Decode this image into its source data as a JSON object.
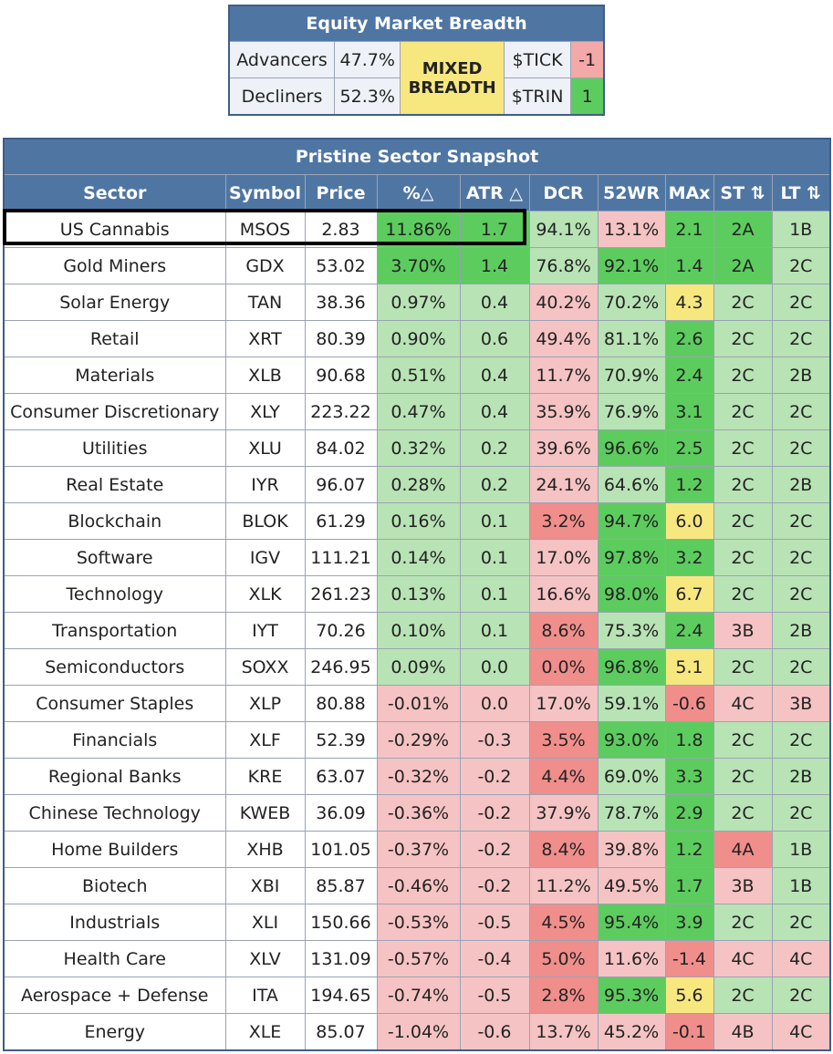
{
  "breadth": {
    "title": "Equity Market Breadth",
    "advancers_label": "Advancers",
    "advancers_value": "47.7%",
    "decliners_label": "Decliners",
    "decliners_value": "52.3%",
    "status_line1": "MIXED",
    "status_line2": "BREADTH",
    "tick_label": "$TICK",
    "tick_value": "-1",
    "trin_label": "$TRIN",
    "trin_value": "1"
  },
  "snapshot": {
    "title": "Pristine Sector Snapshot",
    "headers": [
      "Sector",
      "Symbol",
      "Price",
      "%△",
      "ATR △",
      "DCR",
      "52WR",
      "MAx",
      "ST ⇅",
      "LT ⇅"
    ],
    "rows": [
      [
        "US Cannabis",
        "MSOS",
        "2.83",
        "11.86%",
        "1.7",
        "94.1%",
        "13.1%",
        "2.1",
        "2A",
        "1B"
      ],
      [
        "Gold Miners",
        "GDX",
        "53.02",
        "3.70%",
        "1.4",
        "76.8%",
        "92.1%",
        "1.4",
        "2A",
        "2C"
      ],
      [
        "Solar Energy",
        "TAN",
        "38.36",
        "0.97%",
        "0.4",
        "40.2%",
        "70.2%",
        "4.3",
        "2C",
        "2C"
      ],
      [
        "Retail",
        "XRT",
        "80.39",
        "0.90%",
        "0.6",
        "49.4%",
        "81.1%",
        "2.6",
        "2C",
        "2C"
      ],
      [
        "Materials",
        "XLB",
        "90.68",
        "0.51%",
        "0.4",
        "11.7%",
        "70.9%",
        "2.4",
        "2C",
        "2B"
      ],
      [
        "Consumer Discretionary",
        "XLY",
        "223.22",
        "0.47%",
        "0.4",
        "35.9%",
        "76.9%",
        "3.1",
        "2C",
        "2C"
      ],
      [
        "Utilities",
        "XLU",
        "84.02",
        "0.32%",
        "0.2",
        "39.6%",
        "96.6%",
        "2.5",
        "2C",
        "2C"
      ],
      [
        "Real Estate",
        "IYR",
        "96.07",
        "0.28%",
        "0.2",
        "24.1%",
        "64.6%",
        "1.2",
        "2C",
        "2B"
      ],
      [
        "Blockchain",
        "BLOK",
        "61.29",
        "0.16%",
        "0.1",
        "3.2%",
        "94.7%",
        "6.0",
        "2C",
        "2C"
      ],
      [
        "Software",
        "IGV",
        "111.21",
        "0.14%",
        "0.1",
        "17.0%",
        "97.8%",
        "3.2",
        "2C",
        "2C"
      ],
      [
        "Technology",
        "XLK",
        "261.23",
        "0.13%",
        "0.1",
        "16.6%",
        "98.0%",
        "6.7",
        "2C",
        "2C"
      ],
      [
        "Transportation",
        "IYT",
        "70.26",
        "0.10%",
        "0.1",
        "8.6%",
        "75.3%",
        "2.4",
        "3B",
        "2B"
      ],
      [
        "Semiconductors",
        "SOXX",
        "246.95",
        "0.09%",
        "0.0",
        "0.0%",
        "96.8%",
        "5.1",
        "2C",
        "2C"
      ],
      [
        "Consumer Staples",
        "XLP",
        "80.88",
        "-0.01%",
        "0.0",
        "17.0%",
        "59.1%",
        "-0.6",
        "4C",
        "3B"
      ],
      [
        "Financials",
        "XLF",
        "52.39",
        "-0.29%",
        "-0.3",
        "3.5%",
        "93.0%",
        "1.8",
        "2C",
        "2C"
      ],
      [
        "Regional Banks",
        "KRE",
        "63.07",
        "-0.32%",
        "-0.2",
        "4.4%",
        "69.0%",
        "3.3",
        "2C",
        "2B"
      ],
      [
        "Chinese Technology",
        "KWEB",
        "36.09",
        "-0.36%",
        "-0.2",
        "37.9%",
        "78.7%",
        "2.9",
        "2C",
        "2C"
      ],
      [
        "Home Builders",
        "XHB",
        "101.05",
        "-0.37%",
        "-0.2",
        "8.4%",
        "39.8%",
        "1.2",
        "4A",
        "1B"
      ],
      [
        "Biotech",
        "XBI",
        "85.87",
        "-0.46%",
        "-0.2",
        "11.2%",
        "49.5%",
        "1.7",
        "3B",
        "1B"
      ],
      [
        "Industrials",
        "XLI",
        "150.66",
        "-0.53%",
        "-0.5",
        "4.5%",
        "95.4%",
        "3.9",
        "2C",
        "2C"
      ],
      [
        "Health Care",
        "XLV",
        "131.09",
        "-0.57%",
        "-0.4",
        "5.0%",
        "11.6%",
        "-1.4",
        "4C",
        "4C"
      ],
      [
        "Aerospace + Defense",
        "ITA",
        "194.65",
        "-0.74%",
        "-0.5",
        "2.8%",
        "95.3%",
        "5.6",
        "2C",
        "2C"
      ],
      [
        "Energy",
        "XLE",
        "85.07",
        "-1.04%",
        "-0.6",
        "13.7%",
        "45.2%",
        "-0.1",
        "4B",
        "4C"
      ]
    ],
    "colors": [
      [
        "w",
        "w",
        "w",
        "dg",
        "dg",
        "lg",
        "lr",
        "dg",
        "dg",
        "lg"
      ],
      [
        "w",
        "w",
        "w",
        "dg",
        "dg",
        "lg",
        "dg",
        "dg",
        "dg",
        "lg"
      ],
      [
        "w",
        "w",
        "w",
        "lg",
        "lg",
        "lr",
        "lg",
        "y",
        "lg",
        "lg"
      ],
      [
        "w",
        "w",
        "w",
        "lg",
        "lg",
        "lr",
        "lg",
        "dg",
        "lg",
        "lg"
      ],
      [
        "w",
        "w",
        "w",
        "lg",
        "lg",
        "lr",
        "lg",
        "dg",
        "lg",
        "lg"
      ],
      [
        "w",
        "w",
        "w",
        "lg",
        "lg",
        "lr",
        "lg",
        "dg",
        "lg",
        "lg"
      ],
      [
        "w",
        "w",
        "w",
        "lg",
        "lg",
        "lr",
        "dg",
        "dg",
        "lg",
        "lg"
      ],
      [
        "w",
        "w",
        "w",
        "lg",
        "lg",
        "lr",
        "lg",
        "dg",
        "lg",
        "lg"
      ],
      [
        "w",
        "w",
        "w",
        "lg",
        "lg",
        "dr",
        "dg",
        "y",
        "lg",
        "lg"
      ],
      [
        "w",
        "w",
        "w",
        "lg",
        "lg",
        "lr",
        "dg",
        "dg",
        "lg",
        "lg"
      ],
      [
        "w",
        "w",
        "w",
        "lg",
        "lg",
        "lr",
        "dg",
        "y",
        "lg",
        "lg"
      ],
      [
        "w",
        "w",
        "w",
        "lg",
        "lg",
        "dr",
        "lg",
        "dg",
        "lr",
        "lg"
      ],
      [
        "w",
        "w",
        "w",
        "lg",
        "lg",
        "dr",
        "dg",
        "y",
        "lg",
        "lg"
      ],
      [
        "w",
        "w",
        "w",
        "lr",
        "lr",
        "lr",
        "lg",
        "dr",
        "lr",
        "lr"
      ],
      [
        "w",
        "w",
        "w",
        "lr",
        "lr",
        "dr",
        "dg",
        "dg",
        "lg",
        "lg"
      ],
      [
        "w",
        "w",
        "w",
        "lr",
        "lr",
        "dr",
        "lg",
        "dg",
        "lg",
        "lg"
      ],
      [
        "w",
        "w",
        "w",
        "lr",
        "lr",
        "lr",
        "lg",
        "dg",
        "lg",
        "lg"
      ],
      [
        "w",
        "w",
        "w",
        "lr",
        "lr",
        "dr",
        "lr",
        "dg",
        "dr",
        "lg"
      ],
      [
        "w",
        "w",
        "w",
        "lr",
        "lr",
        "lr",
        "lr",
        "dg",
        "lr",
        "lg"
      ],
      [
        "w",
        "w",
        "w",
        "lr",
        "lr",
        "dr",
        "dg",
        "dg",
        "lg",
        "lg"
      ],
      [
        "w",
        "w",
        "w",
        "lr",
        "lr",
        "dr",
        "lr",
        "dr",
        "lr",
        "lr"
      ],
      [
        "w",
        "w",
        "w",
        "lr",
        "lr",
        "dr",
        "dg",
        "y",
        "lg",
        "lg"
      ],
      [
        "w",
        "w",
        "w",
        "lr",
        "lr",
        "lr",
        "lr",
        "dr",
        "lr",
        "lr"
      ]
    ]
  },
  "palette": {
    "header_blue": "#4f76a3",
    "dark_green": "#5ccc5e",
    "light_green": "#b8e3b5",
    "light_red": "#f5c3c3",
    "dark_red": "#f08e8c",
    "yellow": "#f7e77f"
  }
}
